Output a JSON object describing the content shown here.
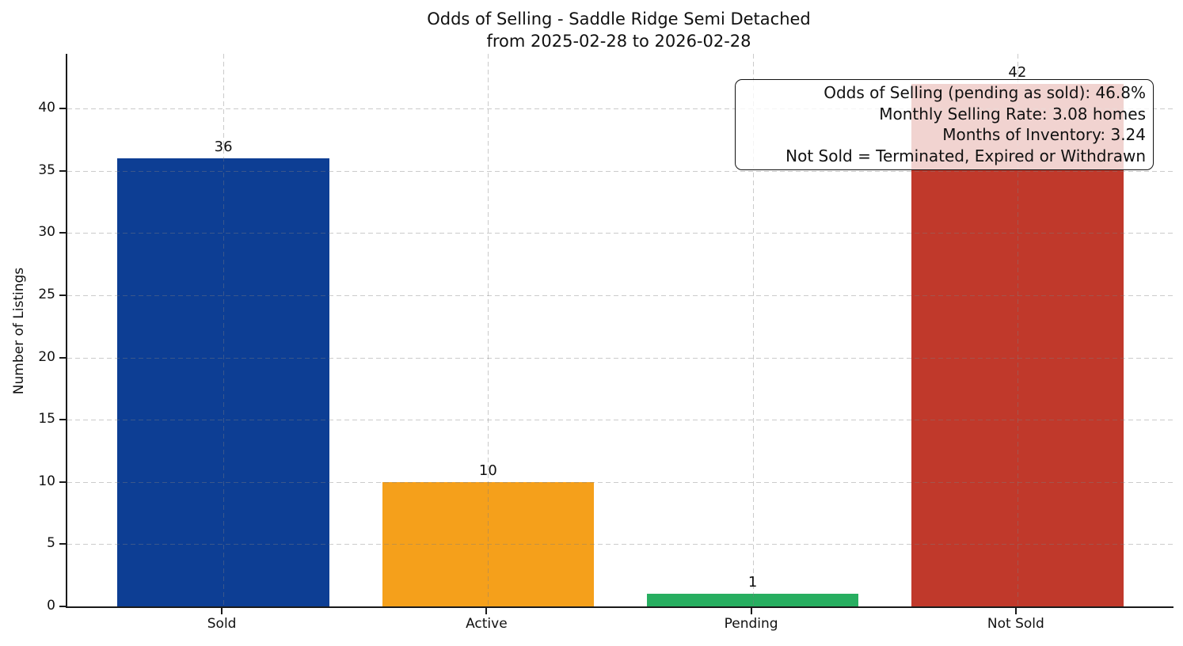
{
  "title": {
    "line1": "Odds of Selling - Saddle Ridge Semi Detached",
    "line2": "from 2025-02-28 to 2026-02-28"
  },
  "chart_data": {
    "type": "bar",
    "title": "Odds of Selling - Saddle Ridge Semi Detached\nfrom 2025-02-28 to 2026-02-28",
    "categories": [
      "Sold",
      "Active",
      "Pending",
      "Not Sold"
    ],
    "values": [
      36,
      10,
      1,
      42
    ],
    "bar_colors": [
      "#0d3e94",
      "#f5a01b",
      "#27ae60",
      "#c0392b"
    ],
    "xlabel": "",
    "ylabel": "Number of Listings",
    "ylim": [
      0,
      44.4
    ],
    "yticks": [
      0,
      5,
      10,
      15,
      20,
      25,
      30,
      35,
      40
    ],
    "grid": "both-dashed-above-bars",
    "legend": "none",
    "annotation": {
      "lines": [
        "Odds of Selling (pending as sold): 46.8%",
        "Monthly Selling Rate: 3.08 homes",
        "Months of Inventory: 3.24",
        "Not Sold = Terminated, Expired or Withdrawn"
      ]
    }
  }
}
